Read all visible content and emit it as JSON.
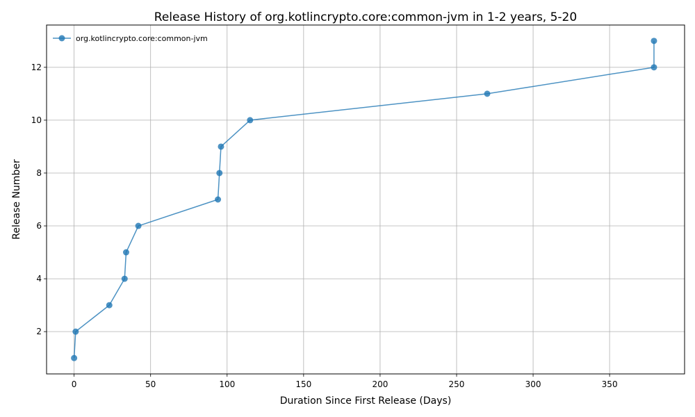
{
  "chart_data": {
    "type": "line",
    "title": "Release History of org.kotlincrypto.core:common-jvm in 1-2 years, 5-20",
    "xlabel": "Duration Since First Release (Days)",
    "ylabel": "Release Number",
    "xlim": [
      -18,
      399
    ],
    "ylim": [
      0.4,
      13.6
    ],
    "xticks": [
      0,
      50,
      100,
      150,
      200,
      250,
      300,
      350
    ],
    "yticks": [
      2,
      4,
      6,
      8,
      10,
      12
    ],
    "grid": true,
    "legend_position": "top-left",
    "series": [
      {
        "name": "org.kotlincrypto.core:common-jvm",
        "color": "#1f77b4",
        "marker": "circle",
        "x": [
          0,
          1,
          23,
          33,
          34,
          42,
          94,
          95,
          96,
          115,
          270,
          379,
          379
        ],
        "y": [
          1,
          2,
          3,
          4,
          5,
          6,
          7,
          8,
          9,
          10,
          11,
          12,
          13
        ]
      }
    ]
  }
}
